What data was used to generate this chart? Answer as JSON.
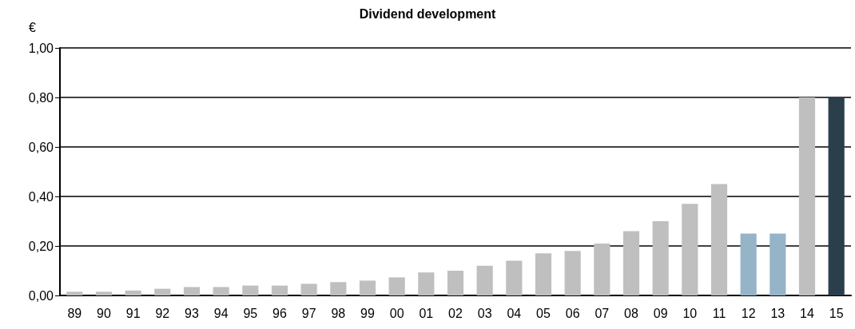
{
  "chart_data": {
    "type": "bar",
    "title": "Dividend development",
    "ylabel": "€",
    "categories": [
      "89",
      "90",
      "91",
      "92",
      "93",
      "94",
      "95",
      "96",
      "97",
      "98",
      "99",
      "00",
      "01",
      "02",
      "03",
      "04",
      "05",
      "06",
      "07",
      "08",
      "09",
      "10",
      "11",
      "12",
      "13",
      "14",
      "15"
    ],
    "values": [
      0.015,
      0.015,
      0.02,
      0.027,
      0.034,
      0.034,
      0.04,
      0.04,
      0.047,
      0.054,
      0.06,
      0.073,
      0.093,
      0.1,
      0.12,
      0.14,
      0.17,
      0.18,
      0.21,
      0.26,
      0.3,
      0.37,
      0.45,
      0.25,
      0.25,
      0.8,
      0.8
    ],
    "colors": [
      "#bfbfbf",
      "#bfbfbf",
      "#bfbfbf",
      "#bfbfbf",
      "#bfbfbf",
      "#bfbfbf",
      "#bfbfbf",
      "#bfbfbf",
      "#bfbfbf",
      "#bfbfbf",
      "#bfbfbf",
      "#bfbfbf",
      "#bfbfbf",
      "#bfbfbf",
      "#bfbfbf",
      "#bfbfbf",
      "#bfbfbf",
      "#bfbfbf",
      "#bfbfbf",
      "#bfbfbf",
      "#bfbfbf",
      "#bfbfbf",
      "#bfbfbf",
      "#96b4c8",
      "#96b4c8",
      "#bfbfbf",
      "#2b3e4c"
    ],
    "ylim": [
      0,
      1
    ],
    "yticks": [
      {
        "value": 0,
        "label": "0,00"
      },
      {
        "value": 0.2,
        "label": "0,20"
      },
      {
        "value": 0.4,
        "label": "0,40"
      },
      {
        "value": 0.6,
        "label": "0,60"
      },
      {
        "value": 0.8,
        "label": "0,80"
      },
      {
        "value": 1,
        "label": "1,00"
      }
    ],
    "grid": "y"
  }
}
